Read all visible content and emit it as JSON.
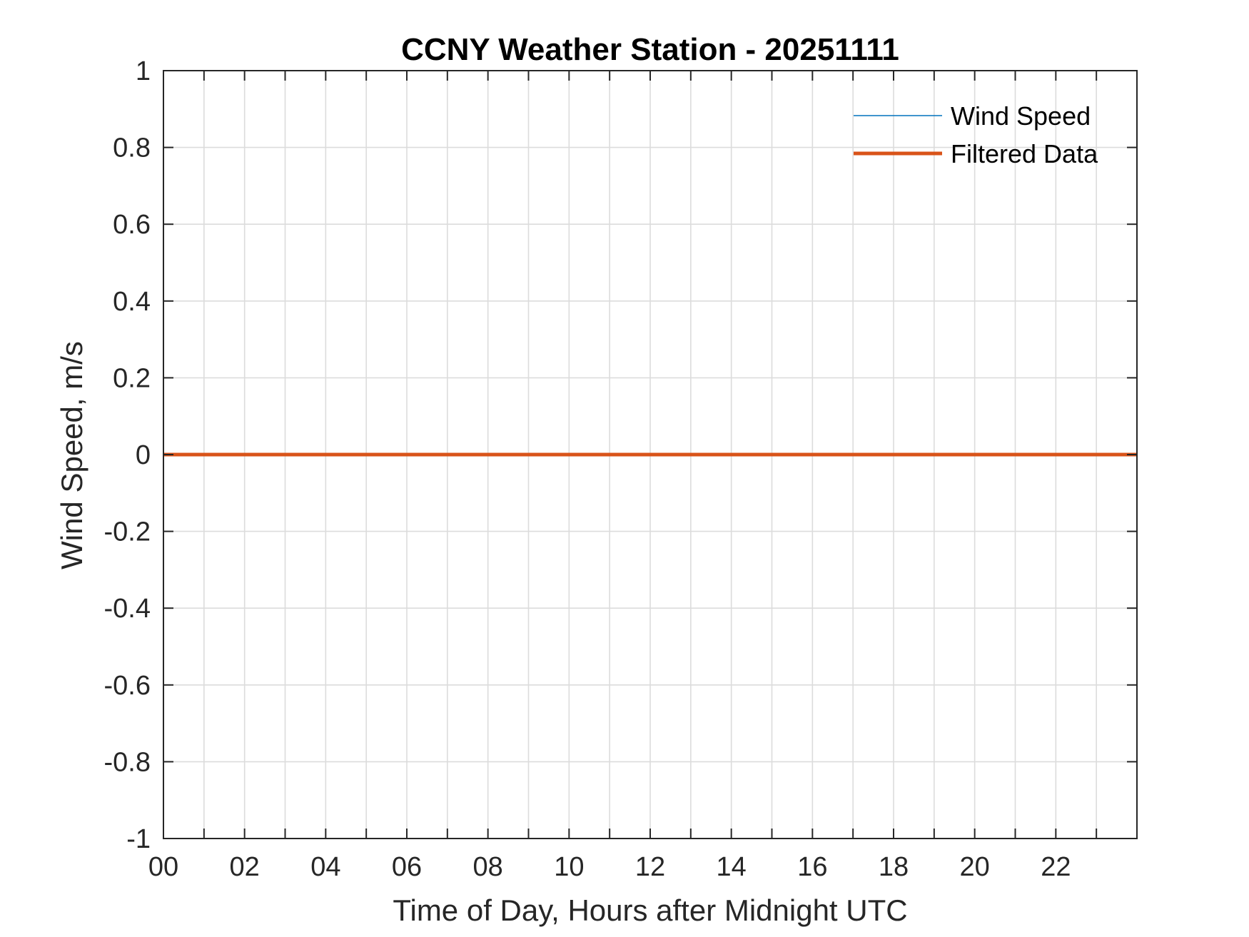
{
  "chart_data": {
    "type": "line",
    "title": "CCNY Weather Station - 20251111",
    "xlabel": "Time of Day, Hours after Midnight UTC",
    "ylabel": "Wind Speed, m/s",
    "xlim": [
      0,
      24
    ],
    "ylim": [
      -1,
      1
    ],
    "x_ticks": [
      0,
      2,
      4,
      6,
      8,
      10,
      12,
      14,
      16,
      18,
      20,
      22
    ],
    "x_tick_labels": [
      "00",
      "02",
      "04",
      "06",
      "08",
      "10",
      "12",
      "14",
      "16",
      "18",
      "20",
      "22"
    ],
    "x_minor_ticks": [
      0,
      1,
      2,
      3,
      4,
      5,
      6,
      7,
      8,
      9,
      10,
      11,
      12,
      13,
      14,
      15,
      16,
      17,
      18,
      19,
      20,
      21,
      22,
      23
    ],
    "y_ticks": [
      -1,
      -0.8,
      -0.6,
      -0.4,
      -0.2,
      0,
      0.2,
      0.4,
      0.6,
      0.8,
      1
    ],
    "y_tick_labels": [
      "-1",
      "-0.8",
      "-0.6",
      "-0.4",
      "-0.2",
      "0",
      "0.2",
      "0.4",
      "0.6",
      "0.8",
      "1"
    ],
    "grid": true,
    "legend_position": "top-right",
    "series": [
      {
        "name": "Wind Speed",
        "color": "#0072BD",
        "x": [
          0,
          24
        ],
        "y": [
          0,
          0
        ]
      },
      {
        "name": "Filtered Data",
        "color": "#D95319",
        "x": [
          0,
          24
        ],
        "y": [
          0,
          0
        ]
      }
    ]
  }
}
